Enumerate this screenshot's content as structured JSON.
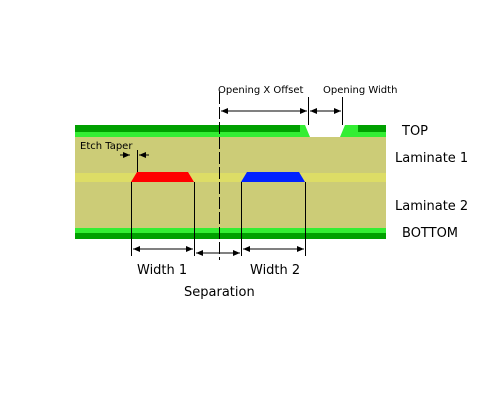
{
  "labels": {
    "opening_x_offset": "Opening X Offset",
    "opening_width": "Opening Width",
    "etch_taper": "Etch Taper",
    "top": "TOP",
    "laminate_1": "Laminate 1",
    "laminate_2": "Laminate 2",
    "bottom": "BOTTOM",
    "width_1": "Width 1",
    "width_2": "Width 2",
    "separation": "Separation"
  },
  "colors": {
    "copper_plane": "#00a000",
    "solder_mask": "#33ee33",
    "laminate": "#cccc77",
    "laminate_highlight": "#dddd66",
    "trace_1": "#ff0000",
    "trace_2": "#0022ff",
    "dimension_line": "#000000",
    "background": "#ffffff"
  }
}
